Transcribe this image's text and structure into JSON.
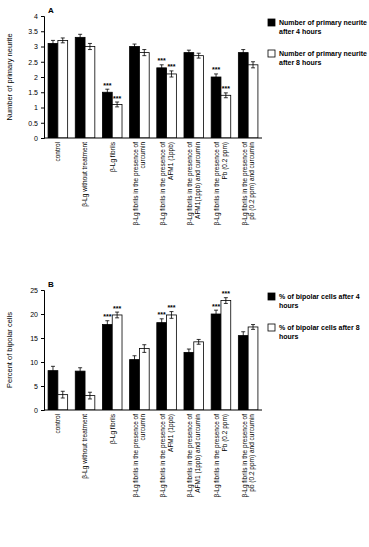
{
  "chart_data": [
    {
      "type": "bar",
      "title": "A",
      "y_label": "Number of primary neurite",
      "categories": [
        "control",
        "β-Lg without treatment",
        "β-Lg fibrils",
        "β-Lg fibrils in the presence of curcumin",
        "β-Lg fibrils in the presence of AFM1 (1ppb)",
        "β-Lg fibrils in the presence of AFM1(1ppb) and curcumin",
        "β-Lg fibrils in the presence of Pb (0.2 ppm)",
        "β-Lg fibrils in the presence of pb (0.2 ppm) and curcumin"
      ],
      "series": [
        {
          "name": "Number of primary neurite after 4 hours",
          "color": "#000000",
          "values": [
            3.1,
            3.3,
            1.5,
            3.0,
            2.3,
            2.8,
            2.0,
            2.8
          ],
          "errors": [
            0.1,
            0.1,
            0.1,
            0.08,
            0.1,
            0.08,
            0.1,
            0.1
          ],
          "annotations": [
            null,
            null,
            "***",
            null,
            "***",
            null,
            "***",
            null
          ]
        },
        {
          "name": "Number of primary neurite after 8 hours",
          "color": "#ffffff",
          "values": [
            3.2,
            3.0,
            1.1,
            2.8,
            2.1,
            2.7,
            1.4,
            2.4
          ],
          "errors": [
            0.08,
            0.1,
            0.08,
            0.1,
            0.1,
            0.08,
            0.08,
            0.1
          ],
          "annotations": [
            null,
            null,
            "***",
            null,
            "***",
            null,
            "***",
            null
          ]
        }
      ],
      "ylim": [
        0,
        4
      ],
      "yticks": [
        0,
        0.5,
        1,
        1.5,
        2,
        2.5,
        3,
        3.5,
        4
      ],
      "grid": false,
      "legend": "right"
    },
    {
      "type": "bar",
      "title": "B",
      "y_label": "Percent of bipolar cells",
      "categories": [
        "control",
        "β-Lg without treatment",
        "β-Lg fibrils",
        "β-Lg fibrils in the presence of curcumin",
        "β-Lg fibrils in the presence of AFM1 (1ppb)",
        "β-Lg fibrils in the presence of AFM1 (1ppb) and curcumin",
        "β-Lg fibrils in the presence of Pb (0.2 ppm)",
        "β-Lg fibrils in the presence of pb (0.2 ppm) and curcumin"
      ],
      "series": [
        {
          "name": "% of bipolar cells after 4 hours",
          "color": "#000000",
          "values": [
            8.2,
            8.1,
            17.8,
            10.5,
            18.2,
            12.0,
            20.0,
            15.5
          ],
          "errors": [
            0.9,
            0.7,
            0.8,
            0.8,
            0.8,
            0.7,
            0.8,
            0.8
          ],
          "annotations": [
            null,
            null,
            "***",
            null,
            "***",
            null,
            "***",
            null
          ]
        },
        {
          "name": "% of bipolar cells after 8 hours",
          "color": "#ffffff",
          "values": [
            3.2,
            3.0,
            19.8,
            12.8,
            19.8,
            14.2,
            22.8,
            17.3
          ],
          "errors": [
            0.7,
            0.7,
            0.6,
            0.8,
            0.7,
            0.5,
            0.6,
            0.5
          ],
          "annotations": [
            null,
            null,
            "***",
            null,
            "***",
            null,
            "***",
            null
          ]
        }
      ],
      "ylim": [
        0,
        25
      ],
      "yticks": [
        0,
        5,
        10,
        15,
        20,
        25
      ],
      "grid": false,
      "legend": "right"
    }
  ]
}
